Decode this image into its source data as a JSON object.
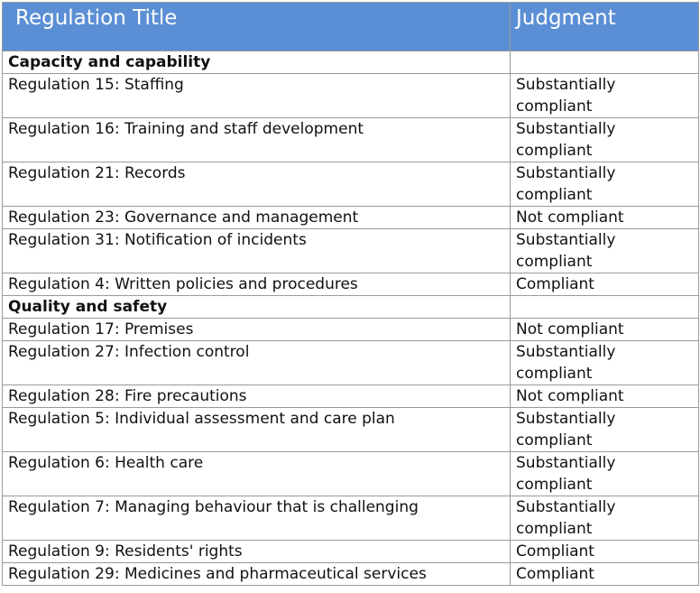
{
  "header": {
    "regulation_title": "Regulation Title",
    "judgment": "Judgment"
  },
  "sections": [
    {
      "title": "Capacity and capability",
      "rows": [
        {
          "regulation": "Regulation 15: Staffing",
          "judgment": "Substantially compliant"
        },
        {
          "regulation": "Regulation 16: Training and staff development",
          "judgment": "Substantially compliant"
        },
        {
          "regulation": "Regulation 21: Records",
          "judgment": "Substantially compliant"
        },
        {
          "regulation": "Regulation 23: Governance and management",
          "judgment": "Not compliant"
        },
        {
          "regulation": "Regulation 31: Notification of incidents",
          "judgment": "Substantially compliant"
        },
        {
          "regulation": "Regulation 4: Written policies and procedures",
          "judgment": "Compliant"
        }
      ]
    },
    {
      "title": "Quality and safety",
      "rows": [
        {
          "regulation": "Regulation 17: Premises",
          "judgment": "Not compliant"
        },
        {
          "regulation": "Regulation 27: Infection control",
          "judgment": "Substantially compliant"
        },
        {
          "regulation": "Regulation 28: Fire precautions",
          "judgment": "Not compliant"
        },
        {
          "regulation": "Regulation 5: Individual assessment and care plan",
          "judgment": "Substantially compliant"
        },
        {
          "regulation": "Regulation 6: Health care",
          "judgment": "Substantially compliant"
        },
        {
          "regulation": "Regulation 7: Managing behaviour that is challenging",
          "judgment": "Substantially compliant"
        },
        {
          "regulation": "Regulation 9: Residents' rights",
          "judgment": "Compliant"
        },
        {
          "regulation": "Regulation 29: Medicines and pharmaceutical services",
          "judgment": "Compliant"
        }
      ]
    }
  ],
  "colors": {
    "header_bg": "#5b8fd5",
    "header_text": "#ffffff",
    "border": "#9a9a9a"
  }
}
